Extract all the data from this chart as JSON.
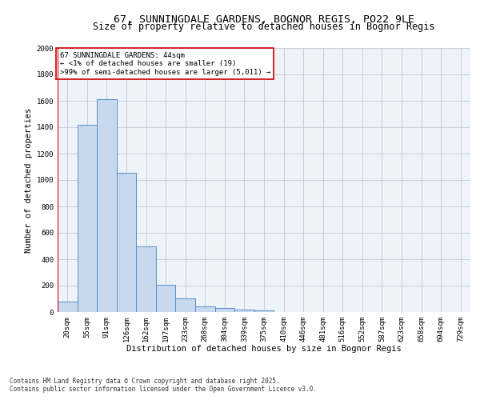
{
  "title1": "67, SUNNINGDALE GARDENS, BOGNOR REGIS, PO22 9LE",
  "title2": "Size of property relative to detached houses in Bognor Regis",
  "xlabel": "Distribution of detached houses by size in Bognor Regis",
  "ylabel": "Number of detached properties",
  "categories": [
    "20sqm",
    "55sqm",
    "91sqm",
    "126sqm",
    "162sqm",
    "197sqm",
    "233sqm",
    "268sqm",
    "304sqm",
    "339sqm",
    "375sqm",
    "410sqm",
    "446sqm",
    "481sqm",
    "516sqm",
    "552sqm",
    "587sqm",
    "623sqm",
    "658sqm",
    "694sqm",
    "729sqm"
  ],
  "values": [
    80,
    1420,
    1610,
    1055,
    500,
    205,
    105,
    40,
    30,
    20,
    15,
    0,
    0,
    0,
    0,
    0,
    0,
    0,
    0,
    0,
    0
  ],
  "bar_color": "#c9d9ed",
  "bar_edge_color": "#5b8fc9",
  "vline_color": "#cc0000",
  "annotation_text": "67 SUNNINGDALE GARDENS: 44sqm\n← <1% of detached houses are smaller (19)\n>99% of semi-detached houses are larger (5,011) →",
  "annotation_box_color": "#ffffff",
  "annotation_box_edge": "#cc0000",
  "ylim": [
    0,
    2000
  ],
  "yticks": [
    0,
    200,
    400,
    600,
    800,
    1000,
    1200,
    1400,
    1600,
    1800,
    2000
  ],
  "bg_color": "#eef2f9",
  "grid_color": "#c0c8d8",
  "footer1": "Contains HM Land Registry data © Crown copyright and database right 2025.",
  "footer2": "Contains public sector information licensed under the Open Government Licence v3.0.",
  "title1_fontsize": 9.5,
  "title2_fontsize": 8.5,
  "xlabel_fontsize": 7.5,
  "ylabel_fontsize": 7.5,
  "tick_fontsize": 6.5,
  "annotation_fontsize": 6.5,
  "footer_fontsize": 5.5
}
